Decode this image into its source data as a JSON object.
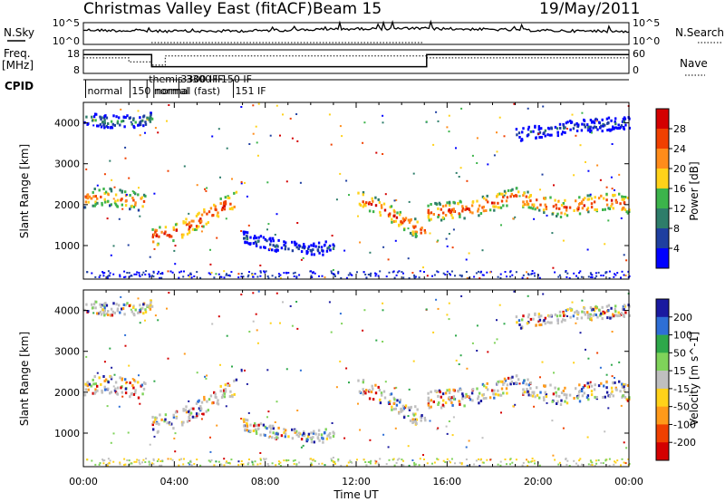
{
  "header": {
    "title": "Christmas Valley East (fitACF)",
    "beam": "Beam 15",
    "date": "19/May/2011"
  },
  "left_labels": {
    "nsky": "N.Sky",
    "freq": "Freq.",
    "freq_unit": "[MHz]",
    "cpid": "CPID"
  },
  "right_labels": {
    "nsearch": "N.Search",
    "nave": "Nave"
  },
  "strip_ticks": {
    "noise_left": [
      "10^5",
      "10^0"
    ],
    "noise_right": [
      "10^5",
      "10^0"
    ],
    "freq_left": [
      "18",
      "8"
    ],
    "freq_right": [
      "60",
      "0"
    ]
  },
  "cpid_labels": [
    {
      "text": "normal",
      "t": 0.1
    },
    {
      "text": "themis 3300 IF",
      "t": 2.8
    },
    {
      "text": "150 normal",
      "t": 2.05
    },
    {
      "text": "normal (fast)",
      "t": 3.1
    },
    {
      "text": "3300 IF 150 IF",
      "t": 4.2
    },
    {
      "text": "151 IF",
      "t": 6.6
    }
  ],
  "colorbar_power": {
    "label": "Power [dB]",
    "ticks": [
      "28",
      "24",
      "20",
      "16",
      "12",
      "8",
      "4"
    ],
    "colors": [
      "#d40000",
      "#f04000",
      "#ff8c1a",
      "#ffd21a",
      "#3cb44b",
      "#2e7d6a",
      "#1f3fa0",
      "#0000ff"
    ]
  },
  "colorbar_velocity": {
    "label": "Velocity [m s^-1]",
    "ticks": [
      "200",
      "100",
      "50",
      "15",
      "-15",
      "-50",
      "-100",
      "-200"
    ],
    "colors": [
      "#1a1aa0",
      "#2e6fd6",
      "#2ea84a",
      "#7fd35a",
      "#bfbfbf",
      "#ffd21a",
      "#ff9a1a",
      "#f04000",
      "#d40000"
    ]
  },
  "chart_data": {
    "type": "heatmap",
    "xlabel": "Time UT",
    "ylabel": "Slant Range [km]",
    "x_ticks": [
      "00:00",
      "04:00",
      "08:00",
      "12:00",
      "16:00",
      "20:00",
      "00:00"
    ],
    "y_ticks": [
      "1000",
      "2000",
      "3000",
      "4000"
    ],
    "xlim": [
      0,
      24
    ],
    "ylim": [
      180,
      4500
    ],
    "frequency_mhz": [
      {
        "t_start": 0.0,
        "t_end": 3.0,
        "value": 17.0
      },
      {
        "t_start": 3.0,
        "t_end": 15.1,
        "value": 10.9
      },
      {
        "t_start": 15.1,
        "t_end": 24.0,
        "value": 17.0
      }
    ],
    "nave": [
      {
        "t_start": 0.0,
        "t_end": 2.0,
        "value": 44
      },
      {
        "t_start": 2.0,
        "t_end": 3.0,
        "value": 32
      },
      {
        "t_start": 3.0,
        "t_end": 3.6,
        "value": 22
      },
      {
        "t_start": 3.6,
        "t_end": 15.1,
        "value": 50
      },
      {
        "t_start": 15.1,
        "t_end": 24.0,
        "value": 44
      }
    ],
    "scatter_bands": [
      {
        "name": "band-morning",
        "t": [
          0.0,
          1.0,
          2.0,
          2.8
        ],
        "range_km": [
          2150,
          2200,
          2100,
          2050
        ],
        "power_db": 24
      },
      {
        "name": "band-dawn",
        "t": [
          3.0,
          4.0,
          5.0,
          6.0,
          6.7
        ],
        "range_km": [
          1200,
          1300,
          1600,
          1950,
          2100
        ],
        "power_db": 28
      },
      {
        "name": "band-midday",
        "t": [
          7.0,
          8.0,
          9.0,
          10.0,
          11.0
        ],
        "range_km": [
          1200,
          1050,
          950,
          900,
          950
        ],
        "power_db": 10
      },
      {
        "name": "band-afternoon",
        "t": [
          12.0,
          13.0,
          14.0,
          15.0
        ],
        "range_km": [
          2200,
          1900,
          1600,
          1300
        ],
        "power_db": 26
      },
      {
        "name": "band-evening",
        "t": [
          15.1,
          17.0,
          19.0,
          21.0,
          23.0,
          24.0
        ],
        "range_km": [
          1800,
          1900,
          2200,
          1900,
          2100,
          2000
        ],
        "power_db": 26
      },
      {
        "name": "band-upper-morning",
        "t": [
          0.0,
          1.5,
          3.0
        ],
        "range_km": [
          4100,
          4000,
          4100
        ],
        "power_db": 14
      },
      {
        "name": "band-upper-evening",
        "t": [
          19.0,
          21.5,
          24.0
        ],
        "range_km": [
          3700,
          3900,
          4000
        ],
        "power_db": 10
      }
    ]
  }
}
